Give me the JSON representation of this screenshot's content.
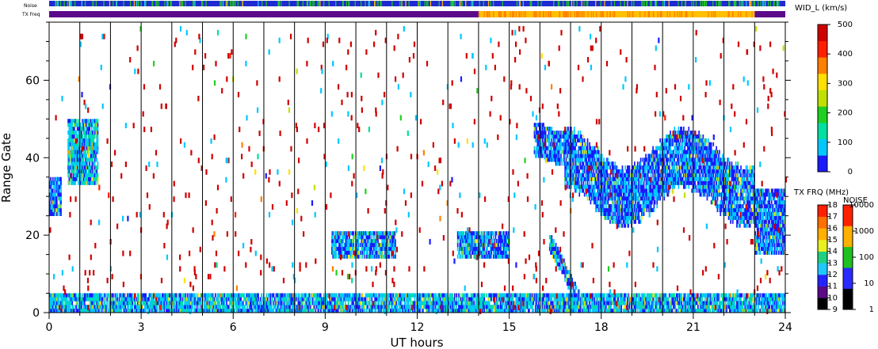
{
  "chart_data": {
    "type": "heatmap",
    "title": "",
    "xlabel": "UT hours",
    "ylabel": "Range Gate",
    "xlim": [
      0,
      24
    ],
    "ylim": [
      0,
      75
    ],
    "x_ticks": [
      "0",
      "3",
      "6",
      "9",
      "12",
      "15",
      "18",
      "21",
      "24"
    ],
    "y_ticks": [
      "0",
      "20",
      "40",
      "60"
    ],
    "grid": "vertical lines every hour",
    "parameter_label": "WID_L (km/s)",
    "width_colorbar": {
      "ticks": [
        "0",
        "100",
        "200",
        "300",
        "400",
        "500"
      ],
      "range": [
        0,
        500
      ],
      "colors": [
        "#1a1aff",
        "#00c8ff",
        "#00e0a0",
        "#20d020",
        "#c0e000",
        "#ffe000",
        "#ff8000",
        "#ff2000",
        "#d00000"
      ]
    },
    "tx_freq_colorbar": {
      "title": "TX FRQ (MHz)",
      "ticks": [
        "9",
        "10",
        "11",
        "12",
        "13",
        "14",
        "15",
        "16",
        "17",
        "18"
      ],
      "colors": [
        "#000000",
        "#5b0a8a",
        "#2323ff",
        "#20c8ff",
        "#20d080",
        "#e8f020",
        "#ffb000",
        "#ff7000",
        "#ff2000"
      ]
    },
    "noise_colorbar": {
      "title": "NOISE",
      "ticks": [
        "1",
        "10",
        "100",
        "1000",
        "10000"
      ],
      "colors": [
        "#000000",
        "#2a2aff",
        "#20c020",
        "#ffb000",
        "#ff2000"
      ]
    },
    "strip_labels": {
      "noise": "Noise",
      "tx_freq": "TX Freq"
    },
    "tx_freq_strip": [
      {
        "from": 0,
        "to": 14,
        "level": "low",
        "color": "#5b0a8a"
      },
      {
        "from": 14,
        "to": 23,
        "level": "high",
        "color": "#ffc000"
      },
      {
        "from": 23,
        "to": 24,
        "level": "low",
        "color": "#5b0a8a"
      }
    ],
    "scatter_regions": [
      {
        "name": "ground-scatter",
        "t": [
          0,
          24
        ],
        "gate": [
          0,
          5
        ],
        "width_kms": 80
      },
      {
        "name": "early-echo-a",
        "t": [
          0,
          0.4
        ],
        "gate": [
          25,
          35
        ],
        "width_kms": 60
      },
      {
        "name": "early-echo-b",
        "t": [
          0.6,
          1.6
        ],
        "gate": [
          33,
          50
        ],
        "width_kms": 90
      },
      {
        "name": "mid-band-1",
        "t": [
          9.2,
          11.3
        ],
        "gate": [
          14,
          21
        ],
        "width_kms": 60
      },
      {
        "name": "mid-band-2",
        "t": [
          13.3,
          15.0
        ],
        "gate": [
          14,
          21
        ],
        "width_kms": 60
      },
      {
        "name": "descending-echo",
        "t": [
          16.3,
          17.3
        ],
        "gate": [
          5,
          20
        ],
        "width_kms": 60
      },
      {
        "name": "evening-echo",
        "t": [
          15.8,
          23.0
        ],
        "gate": [
          25,
          46
        ],
        "width_kms": 50
      },
      {
        "name": "late-echo",
        "t": [
          23.0,
          24.0
        ],
        "gate": [
          15,
          32
        ],
        "width_kms": 50
      }
    ]
  }
}
